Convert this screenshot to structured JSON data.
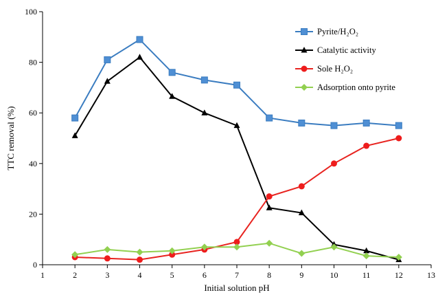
{
  "chart_data": {
    "type": "line",
    "xlabel": "Initial solution pH",
    "ylabel": "TTC removal (%)",
    "xlim": [
      1,
      13
    ],
    "ylim": [
      0,
      100
    ],
    "x_ticks": [
      1,
      2,
      3,
      4,
      5,
      6,
      7,
      8,
      9,
      10,
      11,
      12,
      13
    ],
    "y_ticks": [
      0,
      20,
      40,
      60,
      80,
      100
    ],
    "grid": false,
    "legend_position": "top-right",
    "series": [
      {
        "name": "Pyrite/H₂O₂",
        "color": "#3a7cc0",
        "fill": "#4f8fd4",
        "marker": "square",
        "x": [
          2,
          3,
          4,
          5,
          6,
          7,
          8,
          9,
          10,
          11,
          12
        ],
        "y": [
          58,
          81,
          89,
          76,
          73,
          71,
          58,
          56,
          55,
          56,
          55
        ]
      },
      {
        "name": "Catalytic activity",
        "color": "#000000",
        "fill": "#000000",
        "marker": "triangle",
        "x": [
          2,
          3,
          4,
          5,
          6,
          7,
          8,
          9,
          10,
          11,
          12
        ],
        "y": [
          51,
          72.5,
          82,
          66.5,
          60,
          55,
          22.5,
          20.5,
          8,
          5.5,
          2
        ]
      },
      {
        "name": "Sole H₂O₂",
        "color": "#e8231f",
        "fill": "#ee1c1c",
        "marker": "circle",
        "x": [
          2,
          3,
          4,
          5,
          6,
          7,
          8,
          9,
          10,
          11,
          12
        ],
        "y": [
          3,
          2.5,
          2,
          4,
          6,
          9,
          27,
          31,
          40,
          47,
          50
        ]
      },
      {
        "name": "Adsorption onto pyrite",
        "color": "#92d050",
        "fill": "#92d050",
        "marker": "diamond",
        "x": [
          2,
          3,
          4,
          5,
          6,
          7,
          8,
          9,
          10,
          11,
          12
        ],
        "y": [
          4,
          6,
          5,
          5.5,
          7,
          7,
          8.5,
          4.5,
          7,
          3.5,
          3
        ]
      }
    ]
  }
}
